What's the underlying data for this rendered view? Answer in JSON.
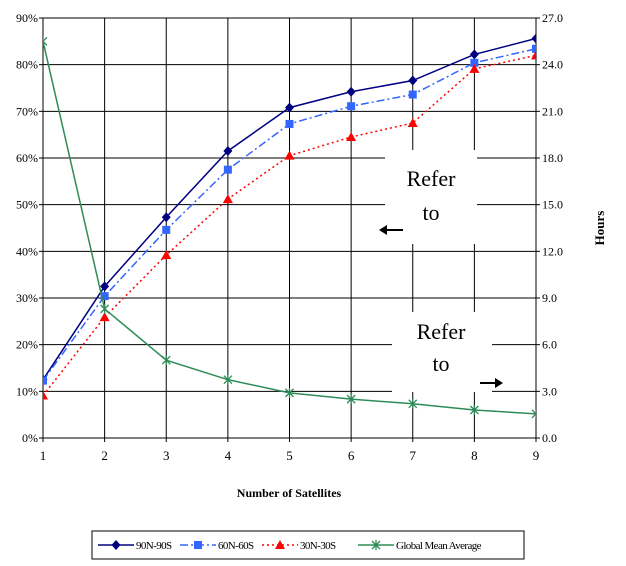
{
  "chart_data": {
    "type": "line",
    "x": [
      1,
      2,
      3,
      4,
      5,
      6,
      7,
      8,
      9
    ],
    "xlabel": "Number of Satellites",
    "ylabel_right": "Hours",
    "y_left_ticks": [
      "0%",
      "10%",
      "20%",
      "30%",
      "40%",
      "50%",
      "60%",
      "70%",
      "80%",
      "90%"
    ],
    "y_left_range": [
      0,
      90
    ],
    "y_right_ticks": [
      "0.0",
      "3.0",
      "6.0",
      "9.0",
      "12.0",
      "15.0",
      "18.0",
      "21.0",
      "24.0",
      "27.0"
    ],
    "y_right_range": [
      0,
      27
    ],
    "grid": true,
    "legend_position": "bottom",
    "series": [
      {
        "name": "90N-90S",
        "axis": "left",
        "color": "#000080",
        "marker": "diamond",
        "dash": "solid",
        "values": [
          12.5,
          32.5,
          47.3,
          61.5,
          70.8,
          74.2,
          76.6,
          82.2,
          85.6
        ]
      },
      {
        "name": "60N-60S",
        "axis": "left",
        "color": "#3366ff",
        "marker": "square",
        "dash": "dashdot",
        "values": [
          12.3,
          30.4,
          44.6,
          57.5,
          67.3,
          71.1,
          73.6,
          80.4,
          83.4
        ]
      },
      {
        "name": "30N-30S",
        "axis": "left",
        "color": "#ff0000",
        "marker": "triangle",
        "dash": "dotted",
        "values": [
          9.1,
          25.9,
          39.2,
          51.2,
          60.5,
          64.5,
          67.5,
          79.1,
          82.0
        ]
      },
      {
        "name": "Global Mean Average",
        "axis": "right",
        "color": "#2e8b57",
        "marker": "asterisk",
        "dash": "solid",
        "values": [
          25.5,
          8.3,
          5.0,
          3.75,
          2.9,
          2.5,
          2.2,
          1.8,
          1.55
        ]
      }
    ],
    "annotations": [
      {
        "line1": "Refer",
        "line2": "to",
        "arrow": "left"
      },
      {
        "line1": "Refer",
        "line2": "to",
        "arrow": "right"
      }
    ]
  }
}
